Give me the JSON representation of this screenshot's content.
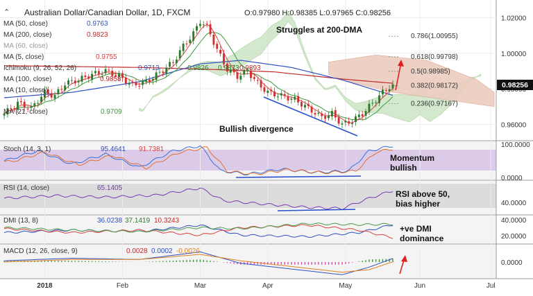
{
  "chart_data": {
    "type": "candlestick",
    "header": {
      "symbol": "Australian Dollar/Canadian Dollar, 1D, FXCM",
      "ohlc": "O:0.97980  H:0.98385  L:0.97965  C:0.98256"
    },
    "last_price_label": "0.98256",
    "colors": {
      "up_candle": "#2d7a2d",
      "down_candle": "#d03030",
      "ma50": "#3050c0",
      "ma200": "#c02828",
      "ma5": "#d84040",
      "ma21": "#3a9a3a",
      "cloud": "#c9e3c0",
      "cloud_bear": "#eccdbf",
      "panel_bg": "#d8c8e8",
      "panel_grey": "#dedede"
    },
    "x_axis": {
      "labels": [
        "2018",
        "Feb",
        "Mar",
        "Apr",
        "May",
        "Jun",
        "Jul"
      ],
      "label_bar_index": [
        12,
        35,
        58,
        78,
        101,
        123,
        144
      ]
    },
    "price_axis": {
      "ticks": [
        "1.02000",
        "1.00000",
        "0.98000",
        "0.96000"
      ],
      "tick_values": [
        1.02,
        1.0,
        0.98,
        0.96
      ],
      "range": [
        0.952,
        1.026
      ]
    },
    "indicators": {
      "ma50": {
        "label": "MA (50, close)",
        "value": "0.9763"
      },
      "ma200": {
        "label": "MA (200, close)",
        "value": "0.9823"
      },
      "ma_hidden": {
        "label": "MA (60, close)",
        "value": ""
      },
      "ma5": {
        "label": "MA (5, close)",
        "value": "0.9755"
      },
      "ichimoku": {
        "label": "Ichimoku (9, 26, 52, 26)",
        "values": [
          "0.9713",
          "0.9826",
          "0.9873",
          "0.9893"
        ]
      },
      "ma_a": {
        "label": "MA (100, close)",
        "value": "0.9858"
      },
      "ma_b": {
        "label": "MA (10, close)",
        "value": ""
      },
      "ma21": {
        "label": "MA (21, close)",
        "value": "0.9709"
      }
    },
    "fib_levels": [
      {
        "label": "0.786(1.00955)",
        "price": 1.00955
      },
      {
        "label": "0.618(0.99798)",
        "price": 0.99798
      },
      {
        "label": "0.5(0.98985)",
        "price": 0.98985
      },
      {
        "label": "0.382(0.98172)",
        "price": 0.98172
      },
      {
        "label": "0.236(0.97167)",
        "price": 0.97167
      }
    ],
    "annotations": {
      "struggles": "Struggles at 200-DMA",
      "divergence": "Bullish divergence",
      "momentum": "Momentum\nbullish",
      "rsi": "RSI above 50,\nbias higher",
      "dmi": "+ve DMI\ndominance"
    },
    "panels": {
      "stoch": {
        "label": "Stoch (14, 3, 1)",
        "values": [
          "95.4641",
          "91.7381"
        ],
        "ticks": [
          "100.0000",
          "0.0000"
        ]
      },
      "rsi": {
        "label": "RSI (14, close)",
        "value": "65.1405",
        "ticks": [
          "40.0000"
        ]
      },
      "dmi": {
        "label": "DMI (13, 8)",
        "values": [
          "36.0238",
          "37.1419",
          "10.3243"
        ],
        "ticks": [
          "40.0000",
          "20.0000"
        ]
      },
      "macd": {
        "label": "MACD (12, 26, close, 9)",
        "values": [
          "0.0028",
          "0.0002",
          "-0.0026"
        ],
        "ticks": [
          "0.0000"
        ]
      }
    },
    "close_anchors": [
      [
        0,
        0.966
      ],
      [
        4,
        0.972
      ],
      [
        8,
        0.969
      ],
      [
        12,
        0.978
      ],
      [
        15,
        0.976
      ],
      [
        18,
        0.983
      ],
      [
        22,
        0.985
      ],
      [
        26,
        0.988
      ],
      [
        30,
        0.99
      ],
      [
        34,
        0.987
      ],
      [
        38,
        0.982
      ],
      [
        42,
        0.984
      ],
      [
        46,
        0.989
      ],
      [
        50,
        0.995
      ],
      [
        53,
        1.004
      ],
      [
        56,
        1.011
      ],
      [
        58,
        1.018
      ],
      [
        60,
        1.015
      ],
      [
        63,
        1.002
      ],
      [
        66,
        0.991
      ],
      [
        69,
        0.987
      ],
      [
        72,
        0.99
      ],
      [
        75,
        0.983
      ],
      [
        78,
        0.978
      ],
      [
        82,
        0.976
      ],
      [
        86,
        0.974
      ],
      [
        90,
        0.969
      ],
      [
        94,
        0.964
      ],
      [
        97,
        0.966
      ],
      [
        100,
        0.96
      ],
      [
        103,
        0.962
      ],
      [
        106,
        0.966
      ],
      [
        109,
        0.972
      ],
      [
        112,
        0.978
      ],
      [
        115,
        0.9826
      ]
    ],
    "ma50_anchors": [
      [
        0,
        0.975
      ],
      [
        20,
        0.978
      ],
      [
        40,
        0.984
      ],
      [
        58,
        0.994
      ],
      [
        70,
        0.996
      ],
      [
        85,
        0.992
      ],
      [
        100,
        0.985
      ],
      [
        115,
        0.9763
      ]
    ],
    "ma200_anchors": [
      [
        0,
        0.993
      ],
      [
        20,
        0.9925
      ],
      [
        40,
        0.992
      ],
      [
        60,
        0.991
      ],
      [
        80,
        0.9895
      ],
      [
        100,
        0.9855
      ],
      [
        120,
        0.9823
      ]
    ],
    "stoch_anchors": [
      [
        0,
        50
      ],
      [
        10,
        80
      ],
      [
        20,
        40
      ],
      [
        30,
        70
      ],
      [
        40,
        30
      ],
      [
        50,
        80
      ],
      [
        58,
        95
      ],
      [
        64,
        20
      ],
      [
        72,
        10
      ],
      [
        82,
        25
      ],
      [
        92,
        15
      ],
      [
        102,
        20
      ],
      [
        108,
        80
      ],
      [
        115,
        95
      ]
    ],
    "rsi_anchors": [
      [
        0,
        50
      ],
      [
        15,
        55
      ],
      [
        30,
        52
      ],
      [
        45,
        56
      ],
      [
        58,
        70
      ],
      [
        65,
        45
      ],
      [
        78,
        38
      ],
      [
        90,
        32
      ],
      [
        100,
        30
      ],
      [
        108,
        50
      ],
      [
        115,
        65
      ]
    ],
    "dmi_plus_anchors": [
      [
        0,
        20
      ],
      [
        20,
        25
      ],
      [
        40,
        22
      ],
      [
        58,
        35
      ],
      [
        70,
        15
      ],
      [
        90,
        12
      ],
      [
        105,
        20
      ],
      [
        115,
        36
      ]
    ],
    "dmi_minus_anchors": [
      [
        0,
        28
      ],
      [
        20,
        20
      ],
      [
        40,
        25
      ],
      [
        58,
        15
      ],
      [
        70,
        30
      ],
      [
        90,
        35
      ],
      [
        105,
        25
      ],
      [
        115,
        10
      ]
    ],
    "adx_anchors": [
      [
        0,
        30
      ],
      [
        20,
        25
      ],
      [
        40,
        22
      ],
      [
        58,
        30
      ],
      [
        70,
        28
      ],
      [
        90,
        38
      ],
      [
        105,
        36
      ],
      [
        115,
        37
      ]
    ],
    "macd_anchors": [
      [
        0,
        0.001
      ],
      [
        20,
        0.003
      ],
      [
        40,
        0.002
      ],
      [
        58,
        0.008
      ],
      [
        70,
        -0.001
      ],
      [
        90,
        -0.007
      ],
      [
        100,
        -0.01
      ],
      [
        108,
        -0.004
      ],
      [
        115,
        0.0028
      ]
    ],
    "signal_anchors": [
      [
        0,
        0.0
      ],
      [
        20,
        0.002
      ],
      [
        40,
        0.002
      ],
      [
        58,
        0.006
      ],
      [
        70,
        0.001
      ],
      [
        90,
        -0.005
      ],
      [
        100,
        -0.008
      ],
      [
        108,
        -0.006
      ],
      [
        115,
        0.0002
      ]
    ]
  }
}
